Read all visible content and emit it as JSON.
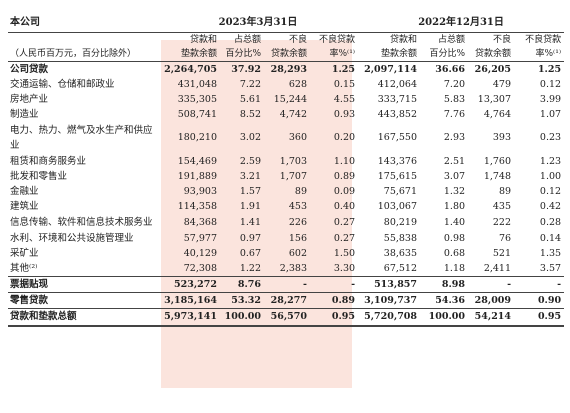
{
  "header": {
    "company": "本公司",
    "period_a": "2023年3月31日",
    "period_b": "2022年12月31日",
    "unit_note": "（人民币百万元，百分比除外）",
    "cols": [
      {
        "line1": "贷款和",
        "line2": "垫款余额"
      },
      {
        "line1": "占总额",
        "line2": "百分比%"
      },
      {
        "line1": "不良",
        "line2": "贷款余额"
      },
      {
        "line1": "不良贷款",
        "line2": "率%⁽¹⁾"
      }
    ]
  },
  "rows": [
    {
      "label": "公司贷款",
      "bold": true,
      "a": [
        "2,264,705",
        "37.92",
        "28,293",
        "1.25"
      ],
      "b": [
        "2,097,114",
        "36.66",
        "26,205",
        "1.25"
      ]
    },
    {
      "label": "交通运输、仓储和邮政业",
      "a": [
        "431,048",
        "7.22",
        "628",
        "0.15"
      ],
      "b": [
        "412,064",
        "7.20",
        "479",
        "0.12"
      ]
    },
    {
      "label": "房地产业",
      "a": [
        "335,305",
        "5.61",
        "15,244",
        "4.55"
      ],
      "b": [
        "333,715",
        "5.83",
        "13,307",
        "3.99"
      ]
    },
    {
      "label": "制造业",
      "a": [
        "508,741",
        "8.52",
        "4,742",
        "0.93"
      ],
      "b": [
        "443,852",
        "7.76",
        "4,764",
        "1.07"
      ]
    },
    {
      "label": "电力、热力、燃气及水生产和供应业",
      "tall": true,
      "a": [
        "180,210",
        "3.02",
        "360",
        "0.20"
      ],
      "b": [
        "167,550",
        "2.93",
        "393",
        "0.23"
      ]
    },
    {
      "label": "租赁和商务服务业",
      "a": [
        "154,469",
        "2.59",
        "1,703",
        "1.10"
      ],
      "b": [
        "143,376",
        "2.51",
        "1,760",
        "1.23"
      ]
    },
    {
      "label": "批发和零售业",
      "a": [
        "191,889",
        "3.21",
        "1,707",
        "0.89"
      ],
      "b": [
        "175,615",
        "3.07",
        "1,748",
        "1.00"
      ]
    },
    {
      "label": "金融业",
      "a": [
        "93,903",
        "1.57",
        "89",
        "0.09"
      ],
      "b": [
        "75,671",
        "1.32",
        "89",
        "0.12"
      ]
    },
    {
      "label": "建筑业",
      "a": [
        "114,358",
        "1.91",
        "453",
        "0.40"
      ],
      "b": [
        "103,067",
        "1.80",
        "435",
        "0.42"
      ]
    },
    {
      "label": "信息传输、软件和信息技术服务业",
      "tall": true,
      "a": [
        "84,368",
        "1.41",
        "226",
        "0.27"
      ],
      "b": [
        "80,219",
        "1.40",
        "222",
        "0.28"
      ]
    },
    {
      "label": "水利、环境和公共设施管理业",
      "a": [
        "57,977",
        "0.97",
        "156",
        "0.27"
      ],
      "b": [
        "55,838",
        "0.98",
        "76",
        "0.14"
      ]
    },
    {
      "label": "采矿业",
      "a": [
        "40,129",
        "0.67",
        "602",
        "1.50"
      ],
      "b": [
        "38,635",
        "0.68",
        "521",
        "1.35"
      ]
    },
    {
      "label": "其他⁽²⁾",
      "a": [
        "72,308",
        "1.22",
        "2,383",
        "3.30"
      ],
      "b": [
        "67,512",
        "1.18",
        "2,411",
        "3.57"
      ]
    },
    {
      "label": "票据贴现",
      "bold": true,
      "sep": true,
      "a": [
        "523,272",
        "8.76",
        "-",
        "-"
      ],
      "b": [
        "513,857",
        "8.98",
        "-",
        "-"
      ]
    },
    {
      "label": "零售贷款",
      "bold": true,
      "sep": true,
      "a": [
        "3,185,164",
        "53.32",
        "28,277",
        "0.89"
      ],
      "b": [
        "3,109,737",
        "54.36",
        "28,009",
        "0.90"
      ]
    },
    {
      "label": "贷款和垫款总额",
      "total": true,
      "a": [
        "5,973,141",
        "100.00",
        "56,570",
        "0.95"
      ],
      "b": [
        "5,720,708",
        "100.00",
        "54,214",
        "0.95"
      ]
    }
  ]
}
